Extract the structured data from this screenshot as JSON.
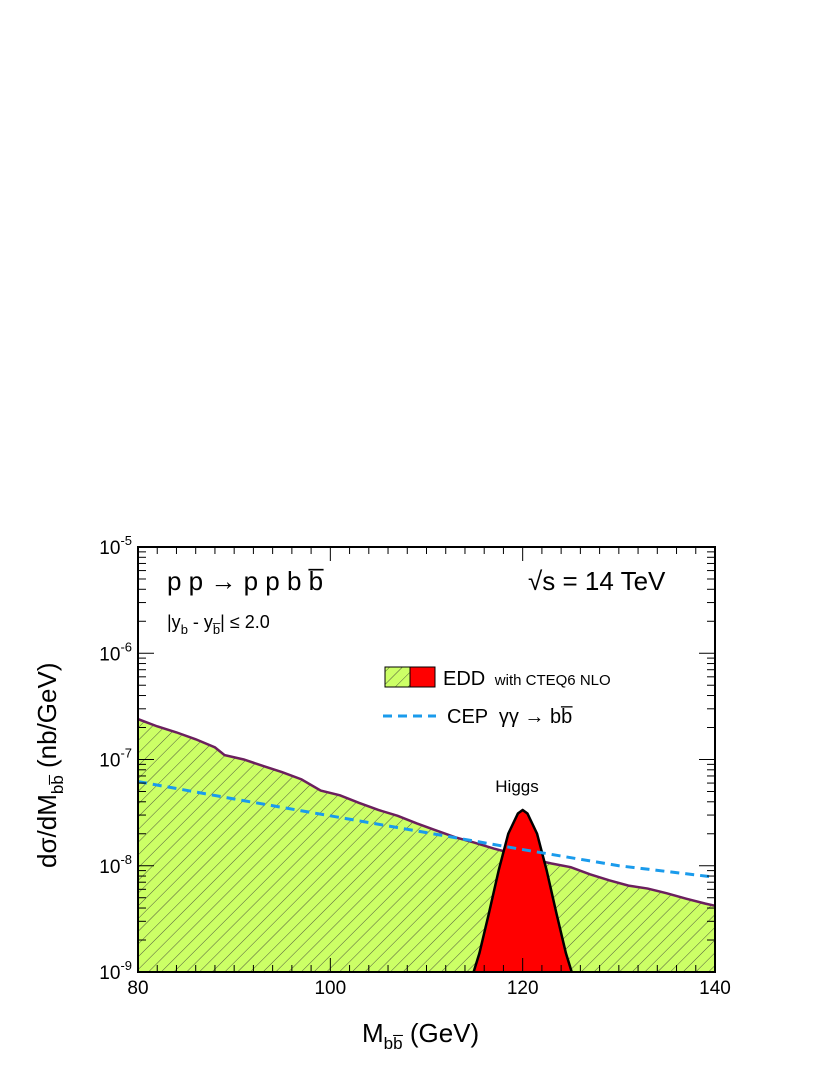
{
  "chart_data": {
    "type": "area",
    "y_scale": "log",
    "xlim": [
      80,
      140
    ],
    "ylim": [
      1e-09,
      1e-05
    ],
    "x_ticks": [
      80,
      100,
      120,
      140
    ],
    "x_tick_labels": [
      "80",
      "100",
      "120",
      "140"
    ],
    "y_ticks": [
      1e-09,
      1e-08,
      1e-07,
      1e-06,
      1e-05
    ],
    "y_tick_labels": [
      {
        "base": "10",
        "exp": "-9"
      },
      {
        "base": "10",
        "exp": "-8"
      },
      {
        "base": "10",
        "exp": "-7"
      },
      {
        "base": "10",
        "exp": "-6"
      },
      {
        "base": "10",
        "exp": "-5"
      }
    ],
    "xlabel": {
      "main": "M",
      "sub": "bb̅",
      "unit": " (GeV)"
    },
    "ylabel": {
      "prefix": "dσ/dM",
      "sub": "bb̅",
      "unit": " (nb/GeV)"
    },
    "grid": false,
    "legend_position": "upper-right",
    "annotations": {
      "process": "p p → p p b b̅",
      "energy": "√s = 14 TeV",
      "cut": "|y",
      "cut_sub_b": "b",
      "cut_minus": " - y",
      "cut_sub_bbar": "b̅",
      "cut_tail": "| ≤ 2.0",
      "higgs_label": "Higgs"
    },
    "legend": {
      "edd_label": "EDD",
      "edd_note": "with CTEQ6 NLO",
      "cep_label": "CEP  γγ → bb̅"
    },
    "series": [
      {
        "name": "EDD",
        "style": "hatched-area",
        "x": [
          80,
          82,
          84,
          86,
          88,
          89,
          91,
          93,
          95,
          97,
          99,
          101,
          103,
          105,
          107,
          109,
          111,
          113,
          115,
          117,
          119,
          121,
          123,
          125,
          127,
          129,
          131,
          133,
          135,
          137,
          139,
          140
        ],
        "y": [
          2.4e-07,
          2.05e-07,
          1.8e-07,
          1.55e-07,
          1.3e-07,
          1.1e-07,
          1e-07,
          8.7e-08,
          7.6e-08,
          6.5e-08,
          5.1e-08,
          4.6e-08,
          3.9e-08,
          3.35e-08,
          2.95e-08,
          2.5e-08,
          2.15e-08,
          1.85e-08,
          1.65e-08,
          1.45e-08,
          1.3e-08,
          1.15e-08,
          1.05e-08,
          9.7e-09,
          8.3e-09,
          7.3e-09,
          6.5e-09,
          6.1e-09,
          5.5e-09,
          4.9e-09,
          4.4e-09,
          4.2e-09
        ]
      },
      {
        "name": "CEP  γγ → bb̅",
        "style": "dashed-line",
        "x": [
          80,
          90,
          100,
          110,
          120,
          130,
          140
        ],
        "y": [
          6.2e-08,
          4.25e-08,
          2.95e-08,
          2.05e-08,
          1.42e-08,
          1e-08,
          7.8e-09
        ]
      },
      {
        "name": "Higgs",
        "style": "filled-peak",
        "x": [
          114.9,
          115.5,
          116.5,
          117.5,
          118.5,
          119.5,
          120,
          120.5,
          121.5,
          122.5,
          123.5,
          124.5,
          125.1
        ],
        "y": [
          1e-09,
          1.5e-09,
          3.6e-09,
          9e-09,
          2e-08,
          3.1e-08,
          3.35e-08,
          3.1e-08,
          2e-08,
          9e-09,
          3.6e-09,
          1.5e-09,
          1e-09
        ]
      }
    ],
    "colors": {
      "edd_fill": "#ccff66",
      "edd_hatch": "#333333",
      "edd_line": "#6b1f5e",
      "cep_line": "#1a9bec",
      "higgs_fill": "#ff0000",
      "axis": "#000000"
    }
  }
}
